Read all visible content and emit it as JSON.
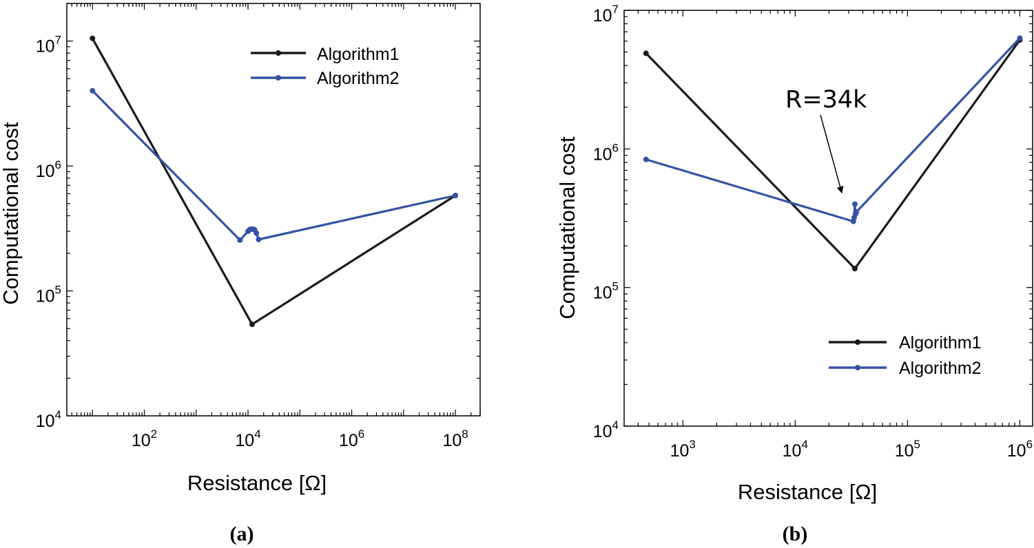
{
  "colors": {
    "algorithm1": "#1a1a1a",
    "algorithm2": "#3352a3",
    "axis": "#000000"
  },
  "chart_data": [
    {
      "type": "line",
      "panel_label": "(a)",
      "xlabel": "Resistance [Ω]",
      "ylabel": "Computational cost",
      "xscale": "log",
      "yscale": "log",
      "xlim": [
        3.2,
        300000000
      ],
      "ylim": [
        10000,
        20000000
      ],
      "xticks": [
        {
          "v": 100,
          "base": "10",
          "exp": "2"
        },
        {
          "v": 10000,
          "base": "10",
          "exp": "4"
        },
        {
          "v": 1000000,
          "base": "10",
          "exp": "6"
        },
        {
          "v": 100000000,
          "base": "10",
          "exp": "8"
        }
      ],
      "yticks": [
        {
          "v": 10000,
          "base": "10",
          "exp": "4"
        },
        {
          "v": 100000,
          "base": "10",
          "exp": "5"
        },
        {
          "v": 1000000,
          "base": "10",
          "exp": "6"
        },
        {
          "v": 10000000,
          "base": "10",
          "exp": "7"
        }
      ],
      "legend_position": "top-right",
      "series": [
        {
          "name": "Algorithm1",
          "x": [
            10,
            12000,
            100000000
          ],
          "y": [
            10500000,
            54000,
            580000
          ]
        },
        {
          "name": "Algorithm2",
          "x": [
            10,
            7000,
            10000,
            10800,
            11600,
            12500,
            13400,
            14500,
            16000,
            100000000
          ],
          "y": [
            4000000,
            255000,
            300000,
            310000,
            312000,
            312000,
            308000,
            290000,
            258000,
            580000
          ]
        }
      ]
    },
    {
      "type": "line",
      "panel_label": "(b)",
      "xlabel": "Resistance [Ω]",
      "ylabel": "Computational cost",
      "xscale": "log",
      "yscale": "log",
      "xlim": [
        300,
        1300000
      ],
      "ylim": [
        10000,
        10000000
      ],
      "xticks": [
        {
          "v": 1000,
          "base": "10",
          "exp": "3"
        },
        {
          "v": 10000,
          "base": "10",
          "exp": "4"
        },
        {
          "v": 100000,
          "base": "10",
          "exp": "5"
        },
        {
          "v": 1000000,
          "base": "10",
          "exp": "6"
        }
      ],
      "yticks": [
        {
          "v": 10000,
          "base": "10",
          "exp": "4"
        },
        {
          "v": 100000,
          "base": "10",
          "exp": "5"
        },
        {
          "v": 1000000,
          "base": "10",
          "exp": "6"
        },
        {
          "v": 10000000,
          "base": "10",
          "exp": "7"
        }
      ],
      "legend_position": "bottom-right",
      "annotation": {
        "text": "R=34k",
        "x": 34000,
        "y": 410000
      },
      "series": [
        {
          "name": "Algorithm1",
          "x": [
            470,
            34000,
            1000000
          ],
          "y": [
            4900000,
            137000,
            6100000
          ]
        },
        {
          "name": "Algorithm2",
          "x": [
            470,
            33000,
            33500,
            34000,
            34500,
            35000,
            1000000
          ],
          "y": [
            840000,
            300000,
            320000,
            400000,
            340000,
            350000,
            6300000
          ]
        }
      ]
    }
  ]
}
